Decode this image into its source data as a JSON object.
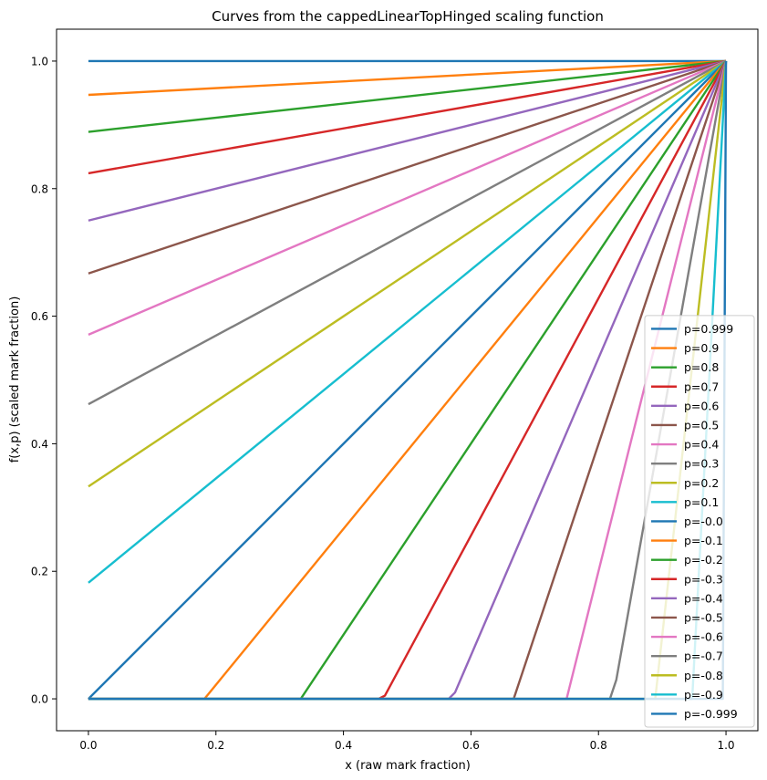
{
  "chart_data": {
    "type": "line",
    "title": "Curves from the cappedLinearTopHinged scaling function",
    "xlabel": "x     (raw mark fraction)",
    "ylabel": "f(x,p)     (scaled mark fraction)",
    "xlim": [
      -0.05,
      1.05
    ],
    "ylim": [
      -0.05,
      1.05
    ],
    "xticks": [
      "0.0",
      "0.2",
      "0.4",
      "0.6",
      "0.8",
      "1.0"
    ],
    "yticks": [
      "0.0",
      "0.2",
      "0.4",
      "0.6",
      "0.8",
      "1.0"
    ],
    "grid": false,
    "legend_position": "lower right",
    "series": [
      {
        "name": "p=0.999",
        "color": "#1f77b4",
        "x": [
          0,
          1
        ],
        "y": [
          1.0,
          1.0
        ]
      },
      {
        "name": "p=0.9",
        "color": "#ff7f0e",
        "x": [
          0,
          1
        ],
        "y": [
          0.947,
          1.0
        ]
      },
      {
        "name": "p=0.8",
        "color": "#2ca02c",
        "x": [
          0,
          1
        ],
        "y": [
          0.889,
          1.0
        ]
      },
      {
        "name": "p=0.7",
        "color": "#d62728",
        "x": [
          0,
          1
        ],
        "y": [
          0.824,
          1.0
        ]
      },
      {
        "name": "p=0.6",
        "color": "#9467bd",
        "x": [
          0,
          1
        ],
        "y": [
          0.75,
          1.0
        ]
      },
      {
        "name": "p=0.5",
        "color": "#8c564b",
        "x": [
          0,
          1
        ],
        "y": [
          0.667,
          1.0
        ]
      },
      {
        "name": "p=0.4",
        "color": "#e377c2",
        "x": [
          0,
          1
        ],
        "y": [
          0.571,
          1.0
        ]
      },
      {
        "name": "p=0.3",
        "color": "#7f7f7f",
        "x": [
          0,
          1
        ],
        "y": [
          0.462,
          1.0
        ]
      },
      {
        "name": "p=0.2",
        "color": "#bcbd22",
        "x": [
          0,
          1
        ],
        "y": [
          0.333,
          1.0
        ]
      },
      {
        "name": "p=0.1",
        "color": "#17becf",
        "x": [
          0,
          1
        ],
        "y": [
          0.182,
          1.0
        ]
      },
      {
        "name": "p=-0.0",
        "color": "#1f77b4",
        "x": [
          0,
          1
        ],
        "y": [
          0.0,
          1.0
        ]
      },
      {
        "name": "p=-0.1",
        "color": "#ff7f0e",
        "x": [
          0,
          0.182,
          1
        ],
        "y": [
          0,
          0,
          1.0
        ]
      },
      {
        "name": "p=-0.2",
        "color": "#2ca02c",
        "x": [
          0,
          0.333,
          1
        ],
        "y": [
          0,
          0,
          1.0
        ]
      },
      {
        "name": "p=-0.3",
        "color": "#d62728",
        "x": [
          0,
          0.455,
          0.465,
          1
        ],
        "y": [
          0,
          0,
          0.005,
          1.0
        ]
      },
      {
        "name": "p=-0.4",
        "color": "#9467bd",
        "x": [
          0,
          0.565,
          0.575,
          1
        ],
        "y": [
          0,
          0,
          0.01,
          1.0
        ]
      },
      {
        "name": "p=-0.5",
        "color": "#8c564b",
        "x": [
          0,
          0.667,
          1
        ],
        "y": [
          0,
          0,
          1.0
        ]
      },
      {
        "name": "p=-0.6",
        "color": "#e377c2",
        "x": [
          0,
          0.75,
          1
        ],
        "y": [
          0,
          0,
          1.0
        ]
      },
      {
        "name": "p=-0.7",
        "color": "#7f7f7f",
        "x": [
          0,
          0.818,
          0.828,
          1
        ],
        "y": [
          0,
          0,
          0.03,
          1.0
        ]
      },
      {
        "name": "p=-0.8",
        "color": "#bcbd22",
        "x": [
          0,
          0.889,
          1
        ],
        "y": [
          0,
          0,
          1.0
        ]
      },
      {
        "name": "p=-0.9",
        "color": "#17becf",
        "x": [
          0,
          0.947,
          1
        ],
        "y": [
          0,
          0,
          1.0
        ]
      },
      {
        "name": "p=-0.999",
        "color": "#1f77b4",
        "x": [
          0,
          0.995,
          1
        ],
        "y": [
          0,
          0,
          1.0
        ]
      }
    ]
  }
}
